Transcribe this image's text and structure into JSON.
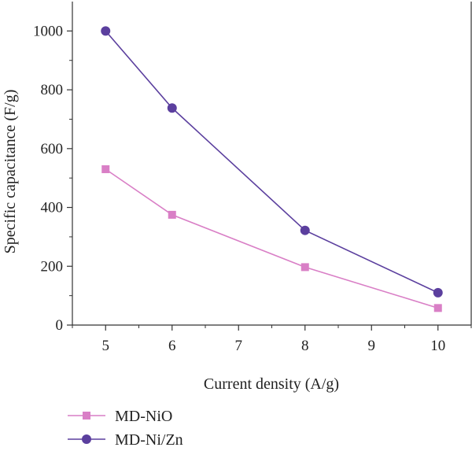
{
  "chart_data": {
    "type": "line",
    "xlabel": "Current density (A/g)",
    "ylabel": "Specific capacitance (F/g)",
    "xlim": [
      4.5,
      10.5
    ],
    "ylim": [
      0,
      1100
    ],
    "x_ticks": [
      "5",
      "6",
      "7",
      "8",
      "9",
      "10"
    ],
    "y_ticks": [
      "0",
      "200",
      "400",
      "600",
      "800",
      "1000"
    ],
    "legend_position": "bottom-left",
    "grid": false,
    "series": [
      {
        "name": "MD-NiO",
        "marker": "square",
        "color": "#d97fc6",
        "x": [
          5,
          6,
          8,
          10
        ],
        "y": [
          530,
          375,
          197,
          58
        ]
      },
      {
        "name": "MD-Ni/Zn",
        "marker": "circle",
        "color": "#5b3f9e",
        "x": [
          5,
          6,
          8,
          10
        ],
        "y": [
          1000,
          738,
          322,
          110
        ]
      }
    ]
  }
}
